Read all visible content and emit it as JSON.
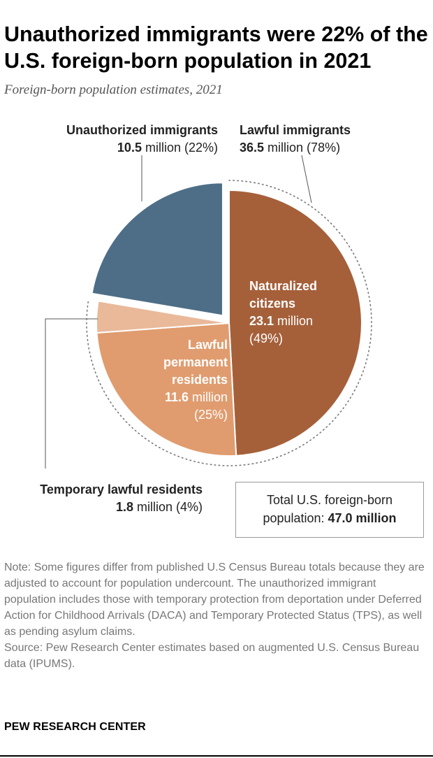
{
  "title": "Unauthorized immigrants were 22% of the U.S. foreign-born population in 2021",
  "subtitle": "Foreign-born population estimates, 2021",
  "chart_data": {
    "type": "pie",
    "unit": "million",
    "slices": [
      {
        "label": "Naturalized citizens",
        "value": 23.1,
        "percent": 49,
        "color": "#a5603a",
        "group": "Lawful immigrants"
      },
      {
        "label": "Lawful permanent residents",
        "value": 11.6,
        "percent": 25,
        "color": "#e09c6f",
        "group": "Lawful immigrants"
      },
      {
        "label": "Temporary lawful residents",
        "value": 1.8,
        "percent": 4,
        "color": "#e9b99a",
        "group": "Lawful immigrants"
      },
      {
        "label": "Unauthorized immigrants",
        "value": 10.5,
        "percent": 22,
        "color": "#4d6e86",
        "group": "Unauthorized immigrants",
        "exploded": true
      }
    ],
    "groups": [
      {
        "label": "Unauthorized immigrants",
        "value": "10.5",
        "rest": " million (22%)"
      },
      {
        "label": "Lawful immigrants",
        "value": "36.5",
        "rest": " million (78%)"
      }
    ],
    "slice_labels": {
      "naturalized": {
        "line1": "Naturalized",
        "line2": "citizens",
        "value": "23.1",
        "unit": " million",
        "percent": "(49%)"
      },
      "lpr": {
        "line1": "Lawful",
        "line2": "permanent",
        "line3": "residents",
        "value": "11.6",
        "unit": " million",
        "percent": "(25%)"
      },
      "temporary": {
        "label": "Temporary lawful residents",
        "value": "1.8",
        "rest": " million (4%)"
      }
    },
    "total": {
      "line1": "Total U.S. foreign-born",
      "line2_prefix": "population: ",
      "line2_value": "47.0 million"
    }
  },
  "note": [
    "Note: Some figures differ from published U.S Census Bureau totals because they are adjusted to account for population undercount. The unauthorized immigrant population includes those with temporary protection from deportation under Deferred Action for Childhood Arrivals (DACA) and Temporary Protected Status (TPS), as well as pending asylum claims.",
    "Source: Pew Research Center estimates based on augmented U.S. Census Bureau data (IPUMS)."
  ],
  "brand": "PEW RESEARCH CENTER"
}
